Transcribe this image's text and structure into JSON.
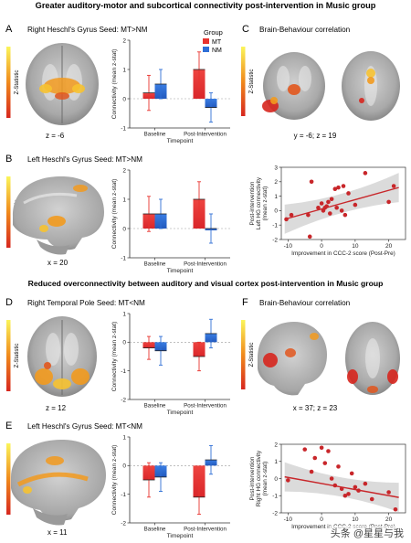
{
  "sectionA_title": "Greater auditory-motor and subcortical connectivity post-intervention in Music group",
  "sectionB_title": "Reduced overconnectivity between auditory and visual cortex post-intervention in Music group",
  "common": {
    "zstat": "Z-Statistic",
    "conn_ylabel": "Connectivity (mean z-stat)",
    "timepoint": "Timepoint",
    "baseline": "Baseline",
    "post": "Post-Intervention",
    "group_title": "Group",
    "mt": "MT",
    "nm": "NM",
    "colors": {
      "mt": "#e8332e",
      "nm": "#2f6fd6",
      "regression": "#c8262a"
    }
  },
  "panels": {
    "A": {
      "letter": "A",
      "seed": "Right Heschl's Gyrus Seed: MT>NM",
      "coord": "z = -6"
    },
    "B": {
      "letter": "B",
      "seed": "Left Heschl's Gyrus Seed: MT>NM",
      "coord": "x = 20"
    },
    "C": {
      "letter": "C",
      "title": "Brain-Behaviour correlation",
      "coord": "y = -6; z = 19"
    },
    "D": {
      "letter": "D",
      "seed": "Right Temporal Pole Seed: MT<NM",
      "coord": "z = 12"
    },
    "E": {
      "letter": "E",
      "seed": "Left Heschl's Gyrus Seed: MT<NM",
      "coord": "x = 11"
    },
    "F": {
      "letter": "F",
      "title": "Brain-Behaviour correlation",
      "coord": "x = 37; z = 23"
    }
  },
  "scatter_top": {
    "ylabel": [
      "Post-intervention",
      "Left HG connectivity",
      "(mean z-stat)"
    ],
    "xlabel": "Improvement in CCC-2 score (Post-Pre)"
  },
  "scatter_bottom": {
    "ylabel": [
      "Post-intervention",
      "Right HG connectivity",
      "(mean z-stat)"
    ],
    "xlabel": "Improvement in CCC-2 score (Post-Pre)"
  },
  "watermark": "头条 @星星与我",
  "chart_data": [
    {
      "type": "bar",
      "panel": "A",
      "categories": [
        "Baseline",
        "Post-Intervention"
      ],
      "series": [
        {
          "name": "MT",
          "values": [
            0.2,
            1.0
          ],
          "error": [
            0.6,
            0.6
          ]
        },
        {
          "name": "NM",
          "values": [
            0.5,
            -0.3
          ],
          "error": [
            0.5,
            0.5
          ]
        }
      ],
      "ylim": [
        -1,
        2
      ],
      "yticks": [
        -1,
        0,
        1,
        2
      ]
    },
    {
      "type": "bar",
      "panel": "B",
      "categories": [
        "Baseline",
        "Post-Intervention"
      ],
      "series": [
        {
          "name": "MT",
          "values": [
            0.5,
            1.0
          ],
          "error": [
            0.6,
            0.6
          ]
        },
        {
          "name": "NM",
          "values": [
            0.5,
            0.0
          ],
          "error": [
            0.5,
            0.5
          ]
        }
      ],
      "ylim": [
        -1,
        2
      ],
      "yticks": [
        -1,
        0,
        1,
        2
      ]
    },
    {
      "type": "bar",
      "panel": "D",
      "categories": [
        "Baseline",
        "Post-Intervention"
      ],
      "series": [
        {
          "name": "MT",
          "values": [
            -0.2,
            -0.5
          ],
          "error": [
            0.4,
            0.5
          ]
        },
        {
          "name": "NM",
          "values": [
            -0.3,
            0.3
          ],
          "error": [
            0.5,
            0.5
          ]
        }
      ],
      "ylim": [
        -2,
        1
      ],
      "yticks": [
        -2,
        -1,
        0,
        1
      ]
    },
    {
      "type": "bar",
      "panel": "E",
      "categories": [
        "Baseline",
        "Post-Intervention"
      ],
      "series": [
        {
          "name": "MT",
          "values": [
            -0.5,
            -1.1
          ],
          "error": [
            0.6,
            0.6
          ]
        },
        {
          "name": "NM",
          "values": [
            -0.4,
            0.2
          ],
          "error": [
            0.5,
            0.5
          ]
        }
      ],
      "ylim": [
        -2,
        1
      ],
      "yticks": [
        -2,
        -1,
        0,
        1
      ]
    },
    {
      "type": "scatter",
      "panel": "C",
      "xlim": [
        -12,
        25
      ],
      "ylim": [
        -2,
        3
      ],
      "xticks": [
        -10,
        0,
        10,
        20
      ],
      "yticks": [
        -2,
        -1,
        0,
        1,
        2,
        3
      ],
      "points": [
        [
          -10.5,
          -0.6
        ],
        [
          -9,
          -0.3
        ],
        [
          -4,
          -0.3
        ],
        [
          -3.5,
          -1.8
        ],
        [
          -3,
          2.0
        ],
        [
          -1,
          0.2
        ],
        [
          0,
          0.5
        ],
        [
          0.5,
          0.0
        ],
        [
          1,
          0.2
        ],
        [
          1.5,
          0.3
        ],
        [
          2,
          0.6
        ],
        [
          2.5,
          -0.2
        ],
        [
          3,
          0.8
        ],
        [
          4,
          1.5
        ],
        [
          4.5,
          0.2
        ],
        [
          5,
          1.6
        ],
        [
          6,
          0.0
        ],
        [
          6.5,
          1.7
        ],
        [
          7,
          -0.3
        ],
        [
          8,
          1.2
        ],
        [
          10,
          0.4
        ],
        [
          13,
          2.6
        ],
        [
          20,
          0.6
        ],
        [
          21.5,
          1.7
        ]
      ],
      "fit": [
        [
          -11,
          -0.6
        ],
        [
          23,
          1.6
        ]
      ]
    },
    {
      "type": "scatter",
      "panel": "F",
      "xlim": [
        -12,
        25
      ],
      "ylim": [
        -2,
        2
      ],
      "xticks": [
        -10,
        0,
        10,
        20
      ],
      "yticks": [
        -2,
        -1,
        0,
        1,
        2
      ],
      "points": [
        [
          -10,
          -0.1
        ],
        [
          -5,
          1.7
        ],
        [
          -3,
          0.4
        ],
        [
          -2,
          1.2
        ],
        [
          0,
          1.8
        ],
        [
          1,
          0.9
        ],
        [
          2,
          1.6
        ],
        [
          3,
          0.0
        ],
        [
          4,
          -0.4
        ],
        [
          5,
          0.7
        ],
        [
          6,
          -0.6
        ],
        [
          7,
          -1.0
        ],
        [
          8,
          -0.9
        ],
        [
          9,
          0.3
        ],
        [
          10,
          -0.5
        ],
        [
          11,
          -0.7
        ],
        [
          13,
          -0.3
        ],
        [
          15,
          -1.2
        ],
        [
          20,
          -0.8
        ],
        [
          22,
          -1.8
        ]
      ],
      "fit": [
        [
          -11,
          0.1
        ],
        [
          23,
          -1.1
        ]
      ]
    }
  ]
}
